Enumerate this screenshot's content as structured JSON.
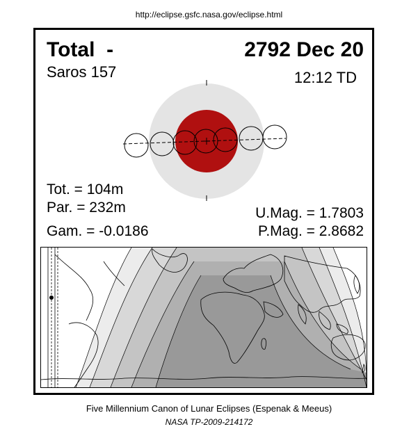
{
  "header": {
    "url": "http://eclipse.gsfc.nasa.gov/eclipse.html"
  },
  "eclipse": {
    "type_label": "Total  -",
    "date": "2792 Dec 20",
    "saros": "Saros 157",
    "time": "12:12 TD",
    "tot": "Tot. = 104m",
    "par": "Par. = 232m",
    "gam": "Gam. = -0.0186",
    "umag": "U.Mag. = 1.7803",
    "pmag": "P.Mag. = 2.8682"
  },
  "colors": {
    "umbra": "#b01010",
    "penumbra": "#e4e4e4",
    "map_dark": "#999999",
    "map_mid": "#b8b8b8",
    "map_light": "#d8d8d8",
    "map_lightest": "#ececec"
  },
  "footer": {
    "citation": "Five Millennium Canon of Lunar Eclipses (Espenak & Meeus)",
    "publication": "NASA TP-2009-214172"
  }
}
